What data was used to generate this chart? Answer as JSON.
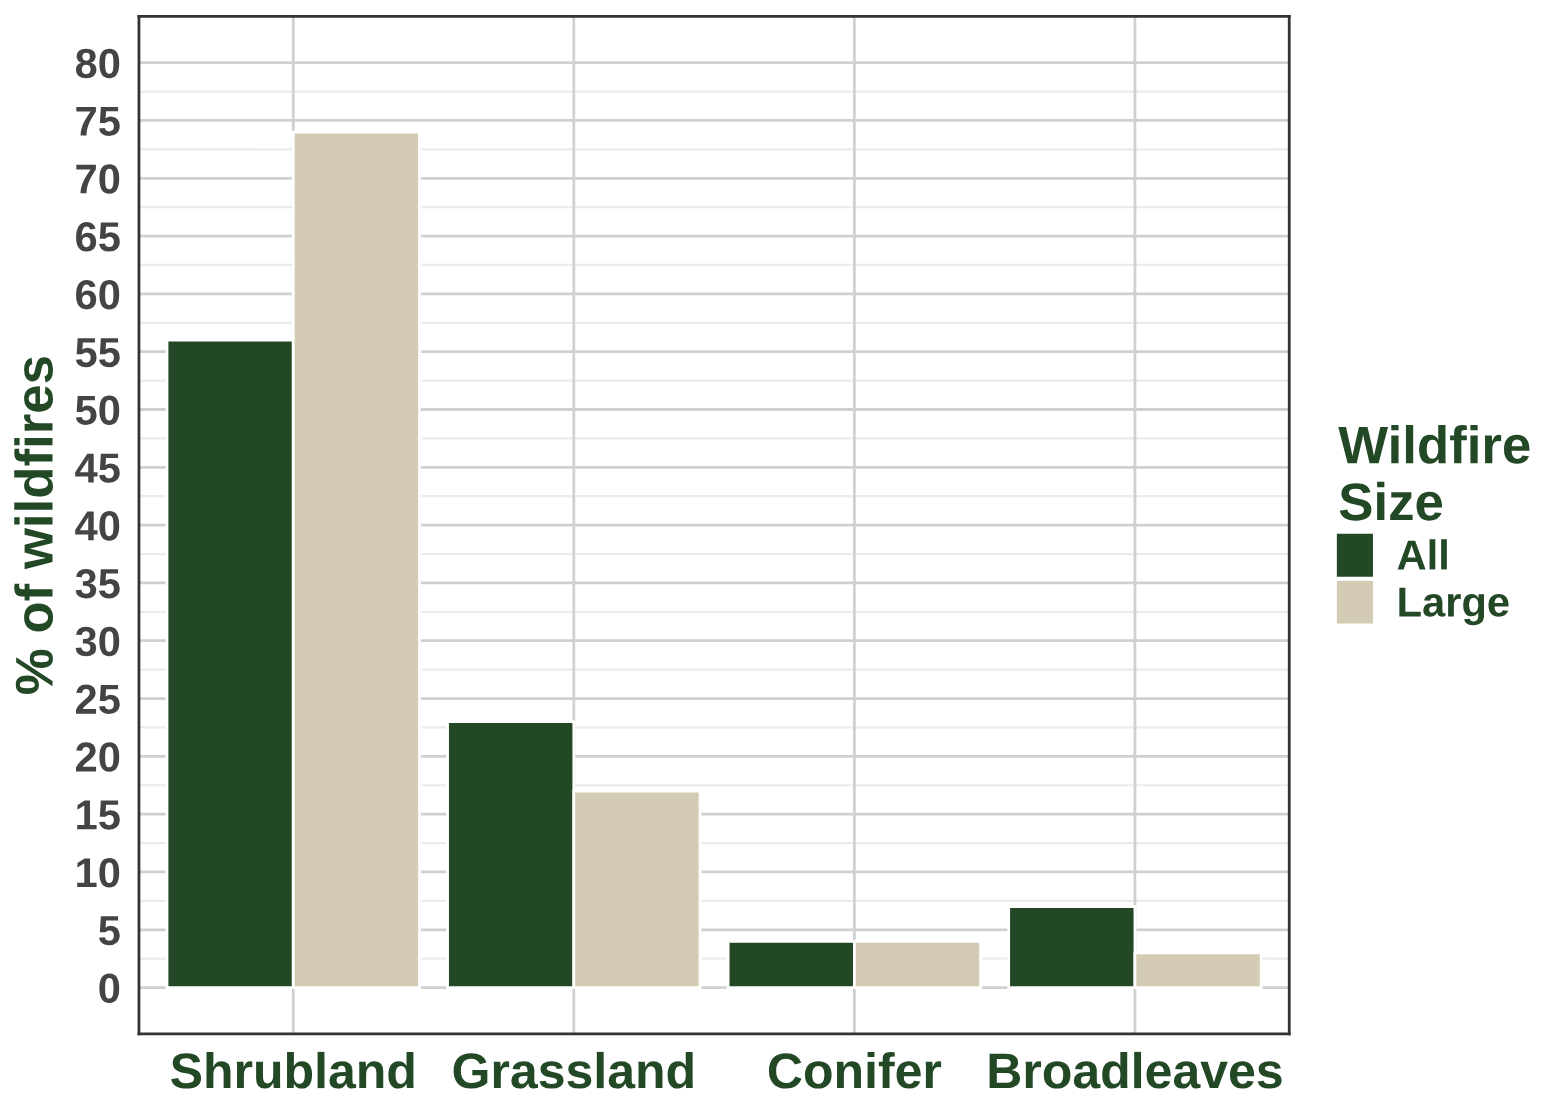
{
  "chart_data": {
    "type": "bar",
    "categories": [
      "Shrubland",
      "Grassland",
      "Conifer",
      "Broadleaves"
    ],
    "series": [
      {
        "name": "All",
        "color": "#234826",
        "values": [
          56,
          23,
          4,
          7
        ]
      },
      {
        "name": "Large",
        "color": "#d4cbb5",
        "values": [
          74,
          17,
          4,
          3
        ]
      }
    ],
    "ylabel": "% of wildfires",
    "legend_title": "Wildfire\nSize",
    "legend": "right",
    "ylim": [
      -4,
      84
    ],
    "yticks": [
      0,
      5,
      10,
      15,
      20,
      25,
      30,
      35,
      40,
      45,
      50,
      55,
      60,
      65,
      70,
      75,
      80
    ],
    "grid": true
  }
}
